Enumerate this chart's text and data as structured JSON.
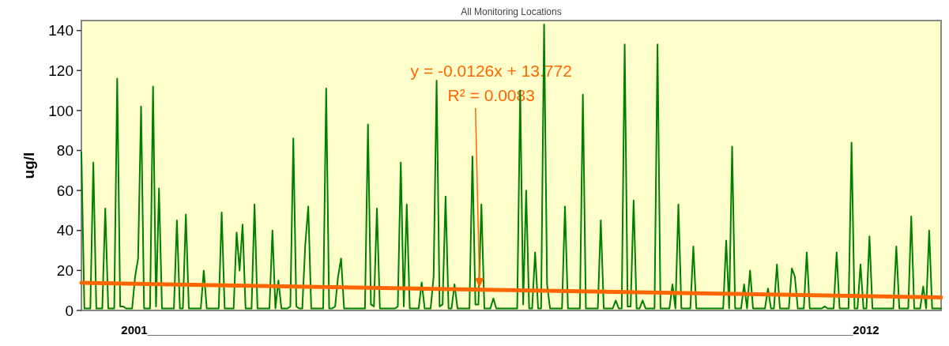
{
  "chart_data": {
    "type": "line",
    "title": "All Monitoring Locations",
    "xlabel": "2001___________________________________________________________________________________________________________2012",
    "ylabel": "ug/l",
    "categories": [
      null,
      null,
      null,
      null,
      null,
      null,
      null,
      null,
      null,
      null,
      null,
      null,
      null,
      null,
      null,
      null,
      null,
      null,
      null,
      null,
      null,
      null,
      null,
      null,
      null,
      null,
      null,
      null,
      null,
      null,
      null,
      null,
      null,
      null,
      null,
      null,
      null,
      null,
      null,
      null,
      null,
      null,
      null,
      null,
      null,
      null,
      null,
      null,
      null,
      null,
      null,
      null,
      null,
      null,
      null,
      null,
      null,
      null,
      null,
      null,
      null,
      null,
      null,
      null,
      null,
      null,
      null,
      null,
      null,
      null,
      null,
      null,
      null,
      null,
      null,
      null,
      null,
      null,
      null,
      null,
      null,
      null,
      null,
      null,
      null,
      null,
      null,
      null,
      null,
      null,
      null,
      null,
      null,
      null,
      null,
      null,
      null,
      null,
      null,
      null,
      null,
      null,
      null,
      null,
      null,
      null,
      null,
      null,
      null,
      null,
      null,
      null,
      null,
      null,
      null,
      null,
      null,
      null,
      null,
      null,
      null,
      null,
      null,
      null,
      null,
      null,
      null,
      null,
      null,
      null,
      null,
      null,
      null,
      null,
      null,
      null,
      null,
      null,
      null,
      null,
      null,
      null,
      null,
      null,
      null,
      null,
      null,
      null,
      null,
      null,
      null,
      null,
      null,
      null,
      null,
      null,
      null,
      null,
      null,
      null,
      null,
      null,
      null,
      null,
      null,
      null,
      null,
      null,
      null,
      null,
      null,
      null,
      null,
      null,
      null,
      null,
      null,
      null,
      null,
      null,
      null,
      null,
      null,
      null,
      null,
      null,
      null,
      null,
      null,
      null,
      null,
      null,
      null,
      null,
      null,
      null,
      null,
      null,
      null,
      null,
      null,
      null,
      null,
      null,
      null,
      null,
      null,
      null,
      null,
      null,
      null,
      null,
      null,
      null,
      null,
      null,
      null,
      null,
      null,
      null,
      null,
      null,
      null,
      null,
      null,
      null,
      null,
      null,
      null,
      null,
      null,
      null,
      null,
      null,
      null,
      null,
      null,
      null,
      null,
      null,
      null,
      null,
      null,
      null,
      null,
      null,
      null,
      null,
      null,
      null,
      null,
      null,
      null,
      null,
      null,
      null,
      null,
      null,
      null,
      null,
      null,
      null,
      null,
      null,
      null,
      null,
      null,
      null,
      null,
      null,
      null,
      null,
      null,
      null,
      null,
      null,
      null,
      null,
      null,
      null,
      null,
      null,
      null,
      null,
      null,
      null,
      null,
      null,
      null
    ],
    "ylim": [
      0,
      145
    ],
    "yticks": [
      0,
      20,
      40,
      60,
      80,
      100,
      120,
      140
    ],
    "tick_labels": "y",
    "marker": "none",
    "series": [
      {
        "color": "#008000",
        "values": [
          79,
          1,
          1,
          1,
          74,
          1,
          1,
          1,
          51,
          1,
          1,
          1,
          116,
          2,
          2,
          1,
          1,
          1,
          17,
          26,
          102,
          1,
          1,
          1,
          112,
          2,
          61,
          1,
          1,
          1,
          1,
          1,
          45,
          1,
          1,
          48,
          1,
          1,
          1,
          1,
          1,
          20,
          1,
          1,
          1,
          1,
          1,
          49,
          1,
          1,
          1,
          1,
          39,
          20,
          43,
          1,
          1,
          1,
          53,
          1,
          1,
          1,
          1,
          1,
          40,
          1,
          15,
          1,
          1,
          1,
          2,
          86,
          2,
          1,
          1,
          33,
          52,
          1,
          1,
          1,
          1,
          1,
          111,
          1,
          1,
          2,
          17,
          26,
          1,
          1,
          1,
          1,
          1,
          1,
          1,
          1,
          93,
          3,
          2,
          51,
          1,
          1,
          1,
          1,
          1,
          1,
          2,
          74,
          2,
          53,
          1,
          1,
          1,
          1,
          14,
          1,
          1,
          1,
          17,
          115,
          2,
          3,
          57,
          1,
          1,
          13,
          1,
          1,
          1,
          1,
          1,
          77,
          3,
          3,
          53,
          1,
          1,
          1,
          6,
          1,
          1,
          1,
          1,
          1,
          1,
          1,
          1,
          110,
          3,
          60,
          1,
          1,
          29,
          1,
          1,
          143,
          13,
          1,
          1,
          1,
          1,
          1,
          52,
          1,
          1,
          1,
          1,
          1,
          108,
          1,
          1,
          1,
          1,
          1,
          45,
          1,
          1,
          1,
          1,
          5,
          1,
          1,
          133,
          2,
          2,
          55,
          1,
          1,
          5,
          1,
          1,
          1,
          1,
          133,
          1,
          1,
          1,
          1,
          13,
          1,
          53,
          1,
          1,
          1,
          1,
          32,
          1,
          1,
          1,
          1,
          1,
          1,
          1,
          1,
          1,
          1,
          35,
          1,
          82,
          1,
          1,
          1,
          13,
          1,
          20,
          1,
          1,
          1,
          1,
          1,
          11,
          1,
          1,
          23,
          1,
          1,
          1,
          1,
          21,
          17,
          1,
          1,
          1,
          29,
          1,
          1,
          1,
          1,
          1,
          2,
          1,
          1,
          1,
          29,
          1,
          1,
          1,
          1,
          84,
          1,
          1,
          23,
          1,
          1,
          37,
          1,
          1,
          1,
          1,
          1,
          1,
          1,
          1,
          32,
          1,
          1,
          1,
          1,
          47,
          1,
          1,
          1,
          12,
          1,
          40,
          1,
          1,
          1,
          1
        ]
      },
      {
        "color": "#ff6600",
        "values": [
          13.8,
          null,
          null,
          null,
          null,
          null,
          null,
          null,
          null,
          null,
          null,
          null,
          null,
          null,
          null,
          null,
          null,
          null,
          null,
          null,
          null,
          null,
          null,
          null,
          null,
          null,
          null,
          null,
          null,
          null,
          null,
          null,
          null,
          null,
          null,
          null,
          null,
          null,
          null,
          null,
          null,
          null,
          null,
          null,
          null,
          null,
          null,
          null,
          null,
          null,
          null,
          null,
          null,
          null,
          null,
          null,
          null,
          null,
          null,
          null,
          null,
          null,
          null,
          null,
          null,
          null,
          null,
          null,
          null,
          null,
          null,
          null,
          null,
          null,
          null,
          null,
          null,
          null,
          null,
          null,
          null,
          null,
          null,
          null,
          null,
          null,
          null,
          null,
          null,
          null,
          null,
          null,
          null,
          null,
          null,
          null,
          null,
          null,
          null,
          null,
          null,
          null,
          null,
          null,
          null,
          null,
          null,
          null,
          null,
          null,
          null,
          null,
          null,
          null,
          null,
          null,
          null,
          null,
          null,
          null,
          null,
          null,
          null,
          null,
          null,
          null,
          null,
          null,
          null,
          null,
          null,
          null,
          null,
          null,
          null,
          null,
          null,
          null,
          null,
          null,
          null,
          null,
          null,
          null,
          null,
          null,
          null,
          null,
          null,
          null,
          null,
          null,
          null,
          null,
          null,
          null,
          null,
          null,
          null,
          null,
          null,
          null,
          null,
          null,
          null,
          null,
          null,
          null,
          null,
          null,
          null,
          null,
          null,
          null,
          null,
          null,
          null,
          null,
          null,
          null,
          null,
          null,
          null,
          null,
          null,
          null,
          null,
          null,
          null,
          null,
          null,
          null,
          null,
          null,
          null,
          null,
          null,
          null,
          null,
          null,
          null,
          null,
          null,
          null,
          null,
          null,
          null,
          null,
          null,
          null,
          null,
          null,
          null,
          null,
          null,
          null,
          null,
          null,
          null,
          null,
          null,
          null,
          null,
          null,
          null,
          null,
          null,
          null,
          null,
          null,
          null,
          null,
          null,
          null,
          null,
          null,
          null,
          null,
          null,
          null,
          null,
          null,
          null,
          null,
          null,
          null,
          null,
          null,
          null,
          null,
          null,
          null,
          null,
          null,
          null,
          null,
          null,
          null,
          null,
          null,
          null,
          null,
          null,
          null,
          null,
          null,
          null,
          null,
          null,
          null,
          null,
          null,
          null,
          null,
          null,
          null,
          null,
          null,
          null,
          null,
          null,
          null,
          null,
          null,
          null,
          null,
          null,
          null,
          6.5
        ]
      }
    ],
    "annotations": [
      "y = -0.0126x + 13.772",
      "R² = 0.0083"
    ]
  }
}
